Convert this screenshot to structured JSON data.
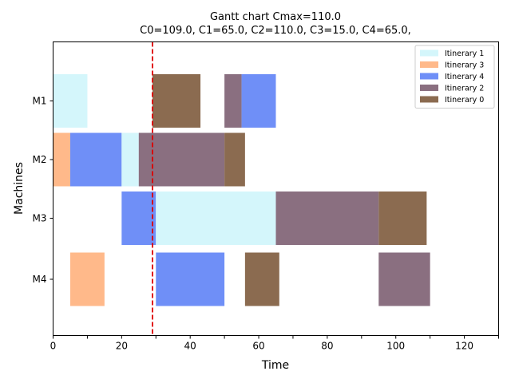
{
  "chart_data": {
    "type": "gantt",
    "title": "Gantt chart  Cmax=110.0",
    "subtitle": "C0=109.0, C1=65.0, C2=110.0, C3=15.0, C4=65.0,",
    "xlabel": "Time",
    "ylabel": "Machines",
    "xlim": [
      0,
      130
    ],
    "x_ticks": [
      0,
      20,
      40,
      60,
      80,
      100,
      120
    ],
    "x_minor_ticks": [
      10,
      30,
      50,
      70,
      90,
      110,
      130
    ],
    "machines": [
      "M1",
      "M2",
      "M3",
      "M4"
    ],
    "reference_line": {
      "x": 29,
      "color": "#dd0000",
      "style": "dashed"
    },
    "legend": {
      "placement": "top-right",
      "entries": [
        {
          "name": "Itinerary 1",
          "color": "#d4f6fb"
        },
        {
          "name": "Itinerary 3",
          "color": "#ffb98a"
        },
        {
          "name": "Itinerary 4",
          "color": "#6f8ff7"
        },
        {
          "name": "Itinerary 2",
          "color": "#8a6f80"
        },
        {
          "name": "Itinerary 0",
          "color": "#8b6b50"
        }
      ]
    },
    "tasks": [
      {
        "machine": "M1",
        "start": 0,
        "end": 10,
        "itinerary": "Itinerary 1"
      },
      {
        "machine": "M1",
        "start": 29,
        "end": 43,
        "itinerary": "Itinerary 0"
      },
      {
        "machine": "M1",
        "start": 50,
        "end": 55,
        "itinerary": "Itinerary 2"
      },
      {
        "machine": "M1",
        "start": 55,
        "end": 65,
        "itinerary": "Itinerary 4"
      },
      {
        "machine": "M2",
        "start": 0,
        "end": 5,
        "itinerary": "Itinerary 3"
      },
      {
        "machine": "M2",
        "start": 5,
        "end": 20,
        "itinerary": "Itinerary 4"
      },
      {
        "machine": "M2",
        "start": 20,
        "end": 25,
        "itinerary": "Itinerary 1"
      },
      {
        "machine": "M2",
        "start": 25,
        "end": 50,
        "itinerary": "Itinerary 2"
      },
      {
        "machine": "M2",
        "start": 50,
        "end": 56,
        "itinerary": "Itinerary 0"
      },
      {
        "machine": "M3",
        "start": 20,
        "end": 30,
        "itinerary": "Itinerary 4"
      },
      {
        "machine": "M3",
        "start": 30,
        "end": 65,
        "itinerary": "Itinerary 1"
      },
      {
        "machine": "M3",
        "start": 65,
        "end": 95,
        "itinerary": "Itinerary 2"
      },
      {
        "machine": "M3",
        "start": 95,
        "end": 109,
        "itinerary": "Itinerary 0"
      },
      {
        "machine": "M4",
        "start": 5,
        "end": 15,
        "itinerary": "Itinerary 3"
      },
      {
        "machine": "M4",
        "start": 30,
        "end": 50,
        "itinerary": "Itinerary 4"
      },
      {
        "machine": "M4",
        "start": 56,
        "end": 66,
        "itinerary": "Itinerary 0"
      },
      {
        "machine": "M4",
        "start": 95,
        "end": 110,
        "itinerary": "Itinerary 2"
      }
    ]
  }
}
